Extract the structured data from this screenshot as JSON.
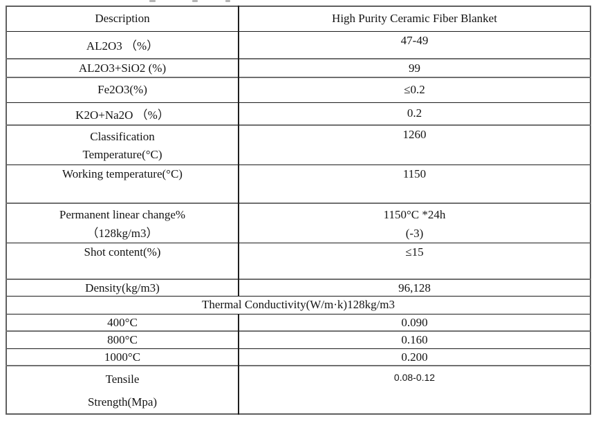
{
  "table": {
    "header_row": {
      "description": "Description",
      "product": "High Purity Ceramic Fiber Blanket"
    },
    "rows": [
      {
        "label": "AL2O3 （%）",
        "value": "47-49"
      },
      {
        "label": "AL2O3+SiO2 (%)",
        "value": "99"
      },
      {
        "label": "Fe2O3(%)",
        "value": "≤0.2"
      },
      {
        "label": "K2O+Na2O （%）",
        "value": "0.2"
      },
      {
        "label": "Classification\nTemperature(°C)",
        "value": "1260"
      },
      {
        "label": "Working temperature(°C)",
        "value": "1150"
      },
      {
        "label": "Permanent linear change%\n（128kg/m3）",
        "value": "1150°C *24h\n(-3)"
      },
      {
        "label": "Shot content(%)",
        "value": "≤15"
      },
      {
        "label": "Density(kg/m3)",
        "value": "96,128"
      }
    ],
    "merged_header": "Thermal Conductivity(W/m·k)128kg/m3",
    "cond_rows": [
      {
        "label": "400°C",
        "value": "0.090"
      },
      {
        "label": "800°C",
        "value": "0.160"
      },
      {
        "label": "1000°C",
        "value": "0.200"
      }
    ],
    "tensile": {
      "label": "Tensile\nStrength(Mpa)",
      "value": "0.08-0.12"
    }
  }
}
